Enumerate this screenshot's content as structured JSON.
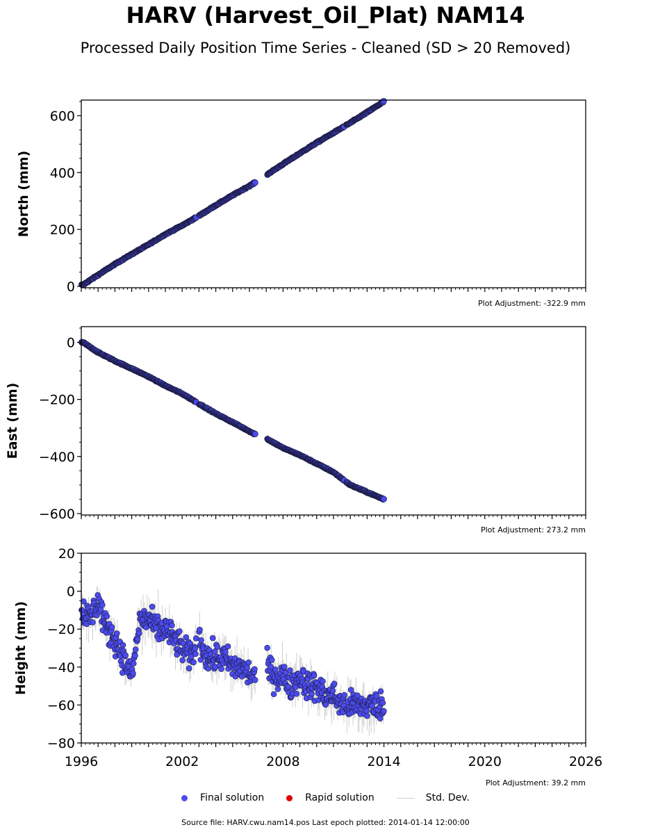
{
  "title": "HARV (Harvest_Oil_Plat) NAM14",
  "subtitle": "Processed Daily Position Time Series - Cleaned (SD > 20 Removed)",
  "colors": {
    "final": "#4b4bf0",
    "rapid": "#e00000",
    "stddev": "#cfcfcf",
    "edge": "#1a1a3a"
  },
  "chart_data": [
    {
      "type": "scatter",
      "ylabel": "North (mm)",
      "adjustment": "Plot Adjustment: -322.9 mm",
      "xlim": [
        1996,
        2026
      ],
      "ylim": [
        -5,
        655
      ],
      "yticks": [
        0,
        200,
        400,
        600
      ],
      "series": [
        {
          "name": "Final solution",
          "x": [
            1996.1,
            1997,
            1998,
            1999,
            2000,
            2001,
            2002,
            2003,
            2004,
            2005,
            2006.2,
            2007.1,
            2008,
            2009,
            2010,
            2011,
            2012,
            2013,
            2014.0
          ],
          "values": [
            5,
            40,
            78,
            113,
            147,
            183,
            214,
            248,
            285,
            320,
            360,
            395,
            430,
            468,
            505,
            540,
            575,
            612,
            650
          ]
        }
      ]
    },
    {
      "type": "scatter",
      "ylabel": "East (mm)",
      "adjustment": "Plot Adjustment: 273.2 mm",
      "xlim": [
        1996,
        2026
      ],
      "ylim": [
        -605,
        55
      ],
      "yticks": [
        0,
        -200,
        -400,
        -600
      ],
      "series": [
        {
          "name": "Final solution",
          "x": [
            1996.1,
            1997,
            1998,
            1999,
            2000,
            2001,
            2002,
            2003,
            2004,
            2005,
            2006.2,
            2007.1,
            2008,
            2009,
            2010,
            2011,
            2012,
            2013,
            2014.0
          ],
          "values": [
            0,
            -35,
            -65,
            -92,
            -120,
            -152,
            -180,
            -215,
            -250,
            -280,
            -318,
            -340,
            -370,
            -395,
            -425,
            -455,
            -500,
            -525,
            -550
          ]
        }
      ]
    },
    {
      "type": "scatter",
      "ylabel": "Height (mm)",
      "adjustment": "Plot Adjustment: 39.2 mm",
      "xlim": [
        1996,
        2026
      ],
      "ylim": [
        -80,
        20
      ],
      "yticks": [
        20,
        0,
        -20,
        -40,
        -60,
        -80
      ],
      "xticks": [
        1996,
        2002,
        2008,
        2014,
        2020,
        2026
      ],
      "series": [
        {
          "name": "Final solution",
          "x": [
            1996.1,
            1996.5,
            1997,
            1997.5,
            1998,
            1998.5,
            1999,
            1999.5,
            2000,
            2000.5,
            2001,
            2001.5,
            2002,
            2002.5,
            2003,
            2003.5,
            2004,
            2004.5,
            2005,
            2005.5,
            2006.2,
            2007.1,
            2007.5,
            2008,
            2008.5,
            2009,
            2009.5,
            2010,
            2010.5,
            2011,
            2011.5,
            2012,
            2012.5,
            2013,
            2013.5,
            2014.0
          ],
          "values": [
            -10,
            -15,
            -5,
            -20,
            -25,
            -35,
            -45,
            -15,
            -15,
            -20,
            -20,
            -25,
            -30,
            -35,
            -25,
            -35,
            -35,
            -35,
            -40,
            -40,
            -45,
            -40,
            -45,
            -45,
            -50,
            -45,
            -50,
            -50,
            -55,
            -55,
            -60,
            -60,
            -60,
            -60,
            -60,
            -60
          ]
        }
      ]
    }
  ],
  "legend": {
    "final": "Final solution",
    "rapid": "Rapid solution",
    "stddev": "Std. Dev."
  },
  "source": "Source file: HARV.cwu.nam14.pos  Last epoch plotted: 2014-01-14 12:00:00"
}
